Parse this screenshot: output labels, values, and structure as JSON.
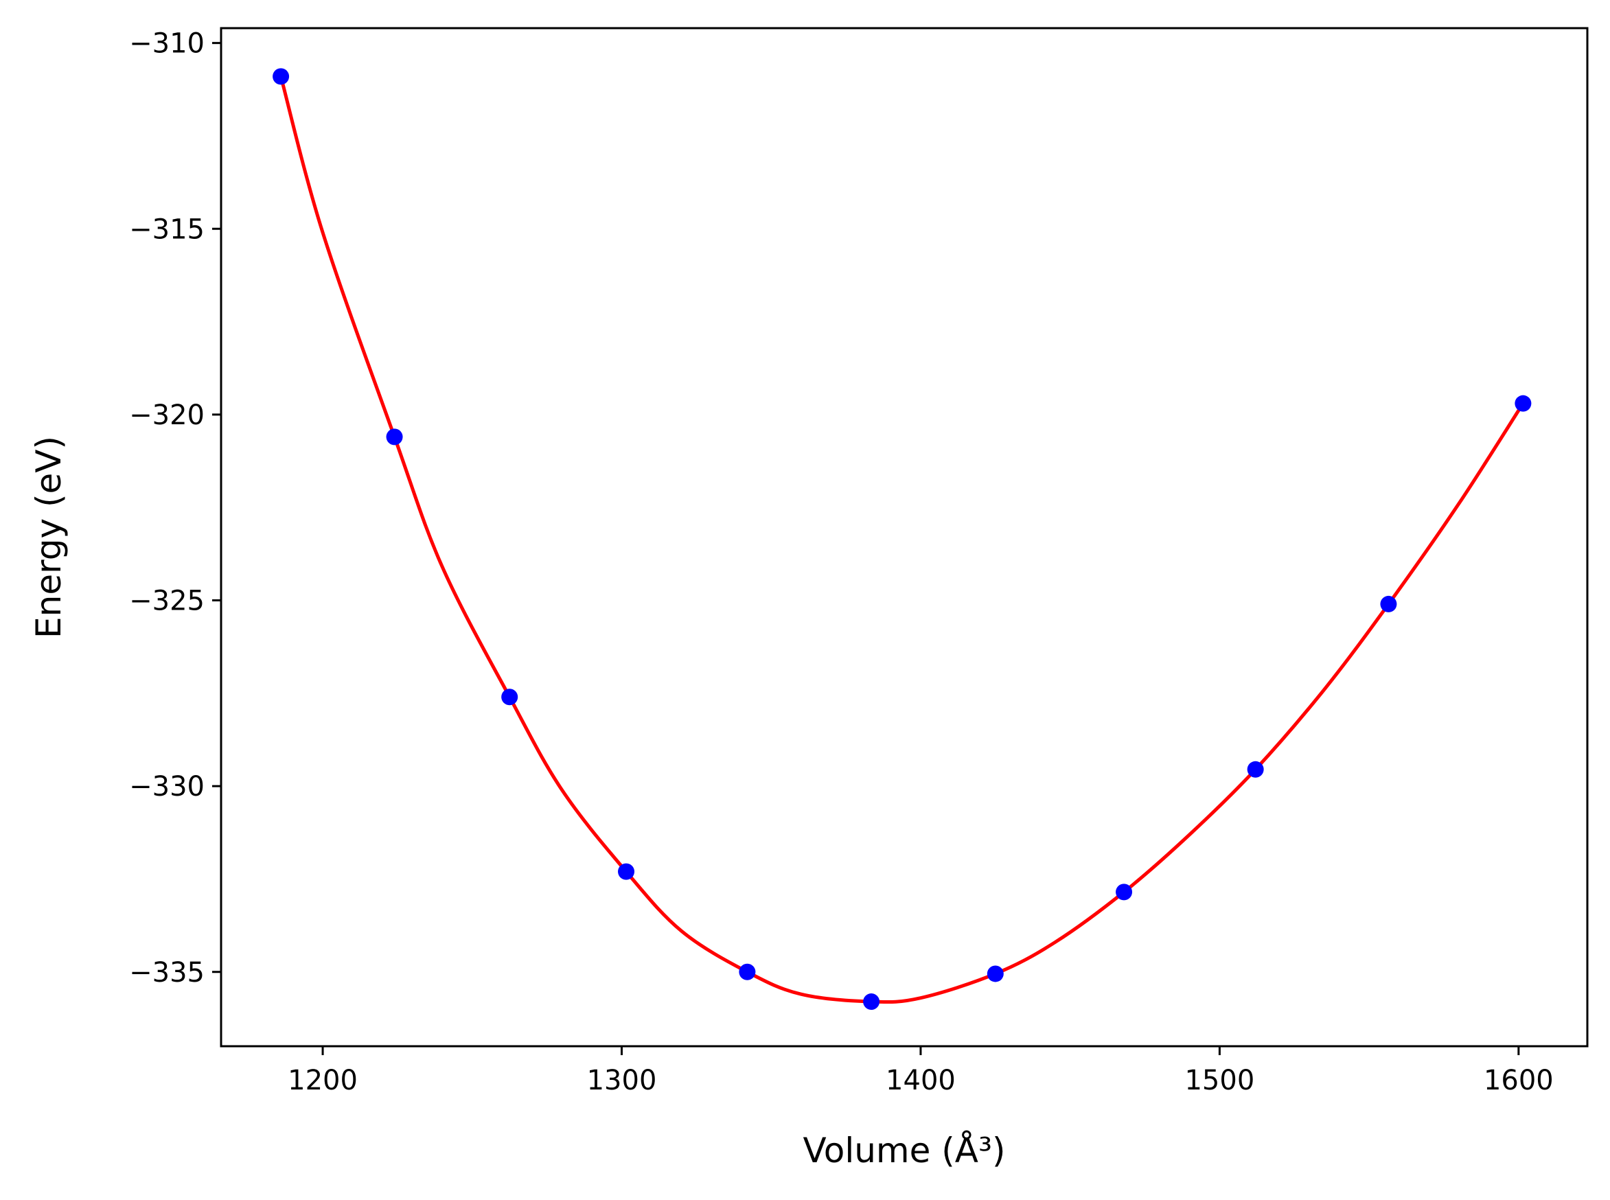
{
  "chart_data": {
    "type": "scatter",
    "title": "",
    "xlabel": "Volume (Å³)",
    "ylabel": "Energy (eV)",
    "xlim": [
      1166,
      1623
    ],
    "ylim": [
      -337.0,
      -309.6
    ],
    "x_ticks": [
      1200,
      1300,
      1400,
      1500,
      1600
    ],
    "y_ticks": [
      -310,
      -315,
      -320,
      -325,
      -330,
      -335
    ],
    "x_tick_labels": [
      "1200",
      "1300",
      "1400",
      "1500",
      "1600"
    ],
    "y_tick_labels": [
      "−310",
      "−315",
      "−320",
      "−325",
      "−330",
      "−335"
    ],
    "grid": false,
    "legend": false,
    "series": [
      {
        "kind": "points",
        "color": "#0000ff",
        "x": [
          1186.0,
          1224.0,
          1262.5,
          1301.5,
          1342.0,
          1383.5,
          1425.0,
          1468.0,
          1512.0,
          1556.5,
          1601.5
        ],
        "y": [
          -310.9,
          -320.6,
          -327.6,
          -332.3,
          -335.0,
          -335.8,
          -335.05,
          -332.85,
          -329.55,
          -325.1,
          -319.7
        ]
      },
      {
        "kind": "fit-curve",
        "color": "#ff0000",
        "x": [
          1186,
          1200,
          1224,
          1240,
          1262.5,
          1280,
          1301.5,
          1320,
          1342,
          1360,
          1383.5,
          1400,
          1425,
          1445,
          1468,
          1490,
          1512,
          1535,
          1556.5,
          1580,
          1601.5
        ],
        "y": [
          -310.9,
          -315.1,
          -320.6,
          -324.1,
          -327.6,
          -330.1,
          -332.3,
          -333.9,
          -335.0,
          -335.6,
          -335.8,
          -335.7,
          -335.05,
          -334.2,
          -332.85,
          -331.3,
          -329.55,
          -327.4,
          -325.1,
          -322.4,
          -319.7
        ]
      }
    ]
  }
}
